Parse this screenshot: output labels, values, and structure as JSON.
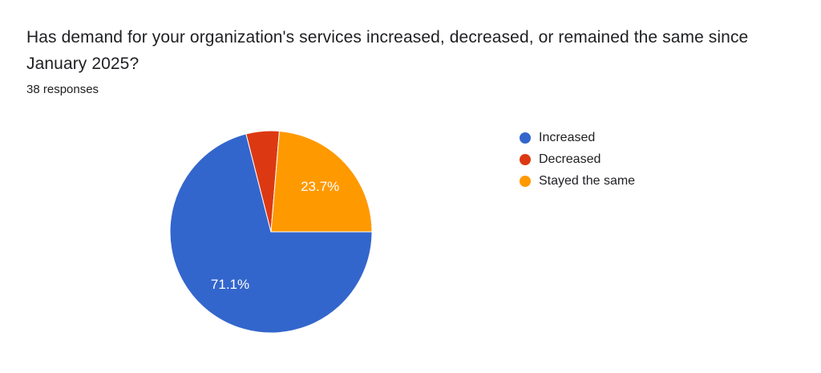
{
  "question": {
    "title": "Has demand for your organization's services increased, decreased, or remained the same since January 2025?",
    "title_lines": [
      "Has demand for your organization's services increased, decreased, or remained the same since",
      "January 2025?"
    ],
    "responses_count": "38 responses"
  },
  "chart_data": {
    "type": "pie",
    "title": "Has demand for your organization's services increased, decreased, or remained the same since January 2025?",
    "subtitle": "38 responses",
    "total_responses": 38,
    "start_angle_deg": 90,
    "direction": "clockwise",
    "legend_position": "right",
    "categories": [
      "Increased",
      "Decreased",
      "Stayed the same"
    ],
    "values_percent": [
      71.1,
      5.3,
      23.7
    ],
    "slices": [
      {
        "label": "Increased",
        "percent": 71.1,
        "color": "#3366CC",
        "data_label": "71.1%"
      },
      {
        "label": "Decreased",
        "percent": 5.3,
        "color": "#DC3912",
        "data_label": ""
      },
      {
        "label": "Stayed the same",
        "percent": 23.7,
        "color": "#FF9900",
        "data_label": "23.7%"
      }
    ],
    "slice_label_color": "#ffffff",
    "slice_border_color": "#ffffff"
  }
}
